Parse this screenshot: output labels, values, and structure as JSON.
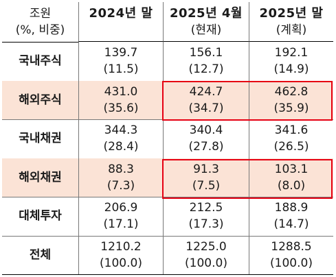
{
  "header": {
    "col0": [
      "조원",
      "(%, 비중)"
    ],
    "col1": [
      "2024년 말"
    ],
    "col2": [
      "2025년 4월",
      "(현재)"
    ],
    "col3": [
      "2025년 말",
      "(계획)"
    ]
  },
  "rows": [
    {
      "label": "국내주식",
      "highlight": false,
      "v1": [
        "139.7",
        "(11.5)"
      ],
      "v2": [
        "156.1",
        "(12.7)"
      ],
      "v3": [
        "192.1",
        "(14.9)"
      ]
    },
    {
      "label": "해외주식",
      "highlight": true,
      "v1": [
        "431.0",
        "(35.6)"
      ],
      "v2": [
        "424.7",
        "(34.7)"
      ],
      "v3": [
        "462.8",
        "(35.9)"
      ]
    },
    {
      "label": "국내채권",
      "highlight": false,
      "v1": [
        "344.3",
        "(28.4)"
      ],
      "v2": [
        "340.4",
        "(27.8)"
      ],
      "v3": [
        "341.6",
        "(26.5)"
      ]
    },
    {
      "label": "해외채권",
      "highlight": true,
      "v1": [
        "88.3",
        "(7.3)"
      ],
      "v2": [
        "91.3",
        "(7.5)"
      ],
      "v3": [
        "103.1",
        "(8.0)"
      ]
    },
    {
      "label": "대체투자",
      "highlight": false,
      "v1": [
        "206.9",
        "(17.1)"
      ],
      "v2": [
        "212.5",
        "(17.3)"
      ],
      "v3": [
        "188.9",
        "(14.7)"
      ]
    },
    {
      "label": "전체",
      "highlight": false,
      "v1": [
        "1210.2",
        "(100.0)"
      ],
      "v2": [
        "1225.0",
        "(100.0)"
      ],
      "v3": [
        "1288.5",
        "(100.0)"
      ]
    }
  ],
  "colors": {
    "highlight_fill": "#fbe3d6",
    "box_border": "#e60012"
  }
}
